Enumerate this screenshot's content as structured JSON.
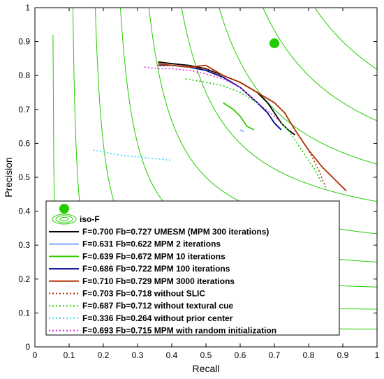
{
  "chart_data": {
    "type": "line",
    "title": "",
    "xlabel": "Recall",
    "ylabel": "Precision",
    "xlim": [
      0,
      1
    ],
    "ylim": [
      0,
      1
    ],
    "xticks": [
      "0",
      "0.1",
      "0.2",
      "0.3",
      "0.4",
      "0.5",
      "0.6",
      "0.7",
      "0.8",
      "0.9",
      "1"
    ],
    "yticks": [
      "0",
      "0.1",
      "0.2",
      "0.3",
      "0.4",
      "0.5",
      "0.6",
      "0.7",
      "0.8",
      "0.9",
      "1"
    ],
    "grid": false,
    "legend_position": "bottom-left",
    "iso_f_label": "iso-F",
    "iso_f_values": [
      0.1,
      0.2,
      0.3,
      0.4,
      0.5,
      0.6,
      0.7,
      0.8,
      0.9
    ],
    "iso_f_color": "#22cc00",
    "best_point": {
      "x": 0.7,
      "y": 0.895,
      "color": "#22cc00"
    },
    "series": [
      {
        "name": "F=0.700 Fb=0.727  UMESM (MPM 300 iterations)",
        "color": "#000000",
        "style": "solid",
        "x": [
          0.36,
          0.4,
          0.45,
          0.5,
          0.55,
          0.6,
          0.65,
          0.68,
          0.7,
          0.72,
          0.74,
          0.76
        ],
        "y": [
          0.84,
          0.835,
          0.83,
          0.82,
          0.8,
          0.78,
          0.75,
          0.72,
          0.69,
          0.66,
          0.64,
          0.625
        ]
      },
      {
        "name": "F=0.631 Fb=0.622  MPM 2 iterations",
        "color": "#7fb0ff",
        "style": "solid",
        "x": [
          0.6,
          0.61
        ],
        "y": [
          0.64,
          0.635
        ]
      },
      {
        "name": "F=0.639 Fb=0.672  MPM 10 iterations",
        "color": "#33cc00",
        "style": "solid",
        "x": [
          0.55,
          0.58,
          0.6,
          0.62,
          0.64
        ],
        "y": [
          0.72,
          0.7,
          0.68,
          0.65,
          0.64
        ]
      },
      {
        "name": "F=0.686 Fb=0.722  MPM 100 iterations",
        "color": "#00008b",
        "style": "solid",
        "x": [
          0.36,
          0.4,
          0.45,
          0.5,
          0.55,
          0.6,
          0.65,
          0.68,
          0.7,
          0.72
        ],
        "y": [
          0.83,
          0.83,
          0.825,
          0.815,
          0.795,
          0.765,
          0.72,
          0.69,
          0.66,
          0.64
        ]
      },
      {
        "name": "F=0.710 Fb=0.729  MPM 3000 iterations",
        "color": "#b03000",
        "style": "solid",
        "x": [
          0.36,
          0.4,
          0.45,
          0.5,
          0.55,
          0.6,
          0.65,
          0.7,
          0.73,
          0.76,
          0.8,
          0.84,
          0.88,
          0.91
        ],
        "y": [
          0.835,
          0.83,
          0.825,
          0.83,
          0.8,
          0.78,
          0.75,
          0.72,
          0.69,
          0.64,
          0.58,
          0.53,
          0.49,
          0.46
        ]
      },
      {
        "name": "F=0.703 Fb=0.718  without SLIC",
        "color": "#b03000",
        "style": "dotted",
        "x": [
          0.36,
          0.4,
          0.45,
          0.5,
          0.55,
          0.6,
          0.65,
          0.7,
          0.73,
          0.76,
          0.8,
          0.83,
          0.85
        ],
        "y": [
          0.83,
          0.83,
          0.825,
          0.82,
          0.8,
          0.78,
          0.75,
          0.72,
          0.69,
          0.64,
          0.58,
          0.52,
          0.47
        ]
      },
      {
        "name": "F=0.687 Fb=0.712  without textural cue",
        "color": "#22cc00",
        "style": "dotted",
        "x": [
          0.44,
          0.5,
          0.55,
          0.6,
          0.65,
          0.7,
          0.74,
          0.78,
          0.82,
          0.84
        ],
        "y": [
          0.79,
          0.78,
          0.77,
          0.75,
          0.72,
          0.68,
          0.64,
          0.58,
          0.52,
          0.48
        ]
      },
      {
        "name": "F=0.336 Fb=0.264  without prior center",
        "color": "#33d6ff",
        "style": "dotted",
        "x": [
          0.17,
          0.2,
          0.25,
          0.3,
          0.35,
          0.4
        ],
        "y": [
          0.58,
          0.575,
          0.565,
          0.56,
          0.555,
          0.55
        ]
      },
      {
        "name": "F=0.693 Fb=0.715  MPM with random initialization",
        "color": "#e033e0",
        "style": "dotted",
        "x": [
          0.32,
          0.36,
          0.4,
          0.45,
          0.5,
          0.55,
          0.6,
          0.65,
          0.7,
          0.72
        ],
        "y": [
          0.825,
          0.82,
          0.82,
          0.815,
          0.805,
          0.79,
          0.765,
          0.72,
          0.68,
          0.66
        ]
      }
    ]
  }
}
